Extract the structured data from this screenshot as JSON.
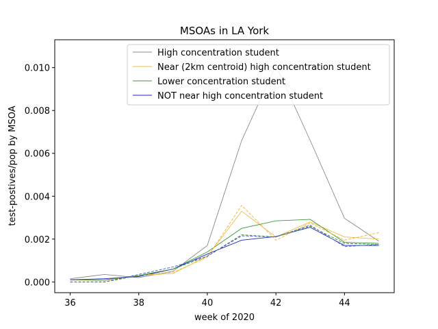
{
  "chart_data": {
    "type": "line",
    "title": "MSOAs in LA York",
    "xlabel": "week of 2020",
    "ylabel": "test-postives/pop by MSOA",
    "xlim": [
      35.55,
      45.45
    ],
    "ylim": [
      -0.0005,
      0.0113
    ],
    "xticks": [
      36,
      38,
      40,
      42,
      44
    ],
    "yticks": [
      0.0,
      0.002,
      0.004,
      0.006,
      0.008,
      0.01
    ],
    "ytick_labels": [
      "0.000",
      "0.002",
      "0.004",
      "0.006",
      "0.008",
      "0.010"
    ],
    "grid": false,
    "legend_position": "top-right",
    "x": [
      36,
      37,
      38,
      39,
      40,
      41,
      42,
      43,
      44,
      45
    ],
    "series": [
      {
        "name": "High concentration student",
        "color": "#888888",
        "style": "solid",
        "values": [
          0.00015,
          0.00035,
          0.0002,
          0.0005,
          0.0017,
          0.0066,
          0.0101,
          0.0066,
          0.00297,
          0.0019
        ]
      },
      {
        "name": "Near (2km centroid) high concentration student",
        "color": "#f5b942",
        "style": "solid",
        "values": [
          0.0001,
          5e-05,
          0.0003,
          0.0004,
          0.0012,
          0.0033,
          0.0021,
          0.0028,
          0.0021,
          0.002
        ]
      },
      {
        "name": "Lower concentration student",
        "color": "#3a9a3a",
        "style": "solid",
        "values": [
          0.0001,
          0.0001,
          0.0003,
          0.0006,
          0.0014,
          0.0025,
          0.00285,
          0.00292,
          0.00185,
          0.0018
        ]
      },
      {
        "name": "NOT near high concentration student",
        "color": "#1f22c8",
        "style": "solid",
        "values": [
          0.0001,
          0.00015,
          0.00025,
          0.0006,
          0.0013,
          0.00195,
          0.00212,
          0.00255,
          0.0017,
          0.0017
        ]
      },
      {
        "name": "",
        "color": "#f5b942",
        "style": "dashed",
        "values": [
          0.0,
          0.0,
          0.0003,
          0.00045,
          0.00115,
          0.00357,
          0.00195,
          0.00275,
          0.00195,
          0.0023
        ]
      },
      {
        "name": "",
        "color": "#3a9a3a",
        "style": "dashed",
        "values": [
          0.0,
          0.0,
          0.0003,
          0.0006,
          0.0012,
          0.0022,
          0.0021,
          0.0026,
          0.0018,
          0.00175
        ]
      },
      {
        "name": "",
        "color": "#5566cc",
        "style": "dashed",
        "values": [
          0.0,
          0.0,
          0.00035,
          0.0007,
          0.0012,
          0.00215,
          0.0021,
          0.00265,
          0.00165,
          0.00175
        ]
      }
    ]
  }
}
